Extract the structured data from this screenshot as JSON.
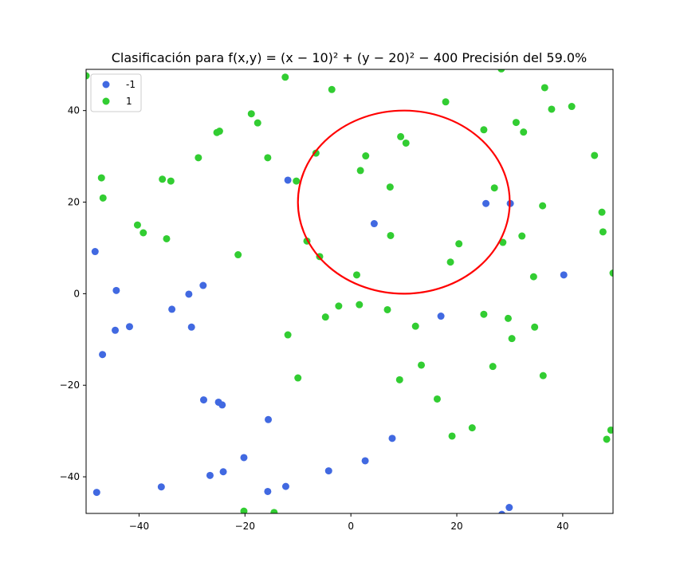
{
  "chart_data": {
    "type": "scatter",
    "title": "Clasificación para f(x,y) = (x − 10)² + (y − 20)² − 400 Precisión del 59.0%",
    "xlabel": "",
    "ylabel": "",
    "xlim": [
      -50,
      49.5
    ],
    "ylim": [
      -48,
      49
    ],
    "xticks": [
      -40,
      -20,
      0,
      20,
      40
    ],
    "yticks": [
      -40,
      -20,
      0,
      20,
      40
    ],
    "grid": false,
    "legend_position": "top-left",
    "circle": {
      "center": [
        10,
        20
      ],
      "radius": 20,
      "color": "#ff0000"
    },
    "series": [
      {
        "name": "-1",
        "color": "#4169e1",
        "points": [
          [
            -48.3,
            9.2
          ],
          [
            -44.3,
            0.7
          ],
          [
            -44.5,
            -8.0
          ],
          [
            -41.8,
            -7.2
          ],
          [
            -46.9,
            -13.3
          ],
          [
            -33.8,
            -3.4
          ],
          [
            -30.6,
            -0.1
          ],
          [
            -30.1,
            -7.3
          ],
          [
            -27.9,
            1.8
          ],
          [
            -11.9,
            24.8
          ],
          [
            4.4,
            15.3
          ],
          [
            25.5,
            19.7
          ],
          [
            30.1,
            19.7
          ],
          [
            40.2,
            4.1
          ],
          [
            17.0,
            -4.9
          ],
          [
            -27.8,
            -23.2
          ],
          [
            -25.0,
            -23.7
          ],
          [
            -24.3,
            -24.3
          ],
          [
            -15.6,
            -27.5
          ],
          [
            -20.2,
            -35.8
          ],
          [
            -26.6,
            -39.7
          ],
          [
            -24.1,
            -38.9
          ],
          [
            -35.8,
            -42.2
          ],
          [
            -48.0,
            -43.4
          ],
          [
            -15.7,
            -43.2
          ],
          [
            -12.3,
            -42.1
          ],
          [
            -4.2,
            -38.7
          ],
          [
            2.7,
            -36.5
          ],
          [
            7.8,
            -31.6
          ],
          [
            29.9,
            -46.7
          ],
          [
            28.5,
            -48.2
          ]
        ]
      },
      {
        "name": "1",
        "color": "#32cd32",
        "points": [
          [
            -50.0,
            47.6
          ],
          [
            -47.1,
            25.3
          ],
          [
            -46.8,
            20.9
          ],
          [
            -40.3,
            15.0
          ],
          [
            -39.2,
            13.3
          ],
          [
            -34.8,
            12.0
          ],
          [
            -35.6,
            25.0
          ],
          [
            -34.0,
            24.6
          ],
          [
            -28.8,
            29.7
          ],
          [
            -25.3,
            35.2
          ],
          [
            -24.8,
            35.5
          ],
          [
            -18.8,
            39.3
          ],
          [
            -17.6,
            37.3
          ],
          [
            -15.7,
            29.7
          ],
          [
            -12.4,
            47.3
          ],
          [
            -3.6,
            44.6
          ],
          [
            -21.3,
            8.5
          ],
          [
            -10.3,
            24.6
          ],
          [
            -6.6,
            30.7
          ],
          [
            -8.3,
            11.5
          ],
          [
            -5.9,
            8.1
          ],
          [
            2.8,
            30.1
          ],
          [
            1.8,
            26.9
          ],
          [
            9.4,
            34.3
          ],
          [
            10.4,
            32.9
          ],
          [
            7.4,
            23.3
          ],
          [
            7.5,
            12.7
          ],
          [
            1.1,
            4.1
          ],
          [
            17.9,
            41.9
          ],
          [
            25.1,
            35.8
          ],
          [
            27.1,
            23.1
          ],
          [
            20.4,
            10.9
          ],
          [
            18.8,
            6.9
          ],
          [
            28.7,
            11.2
          ],
          [
            31.2,
            37.4
          ],
          [
            32.6,
            35.3
          ],
          [
            32.3,
            12.6
          ],
          [
            34.5,
            3.7
          ],
          [
            36.2,
            19.2
          ],
          [
            36.6,
            45.0
          ],
          [
            37.9,
            40.3
          ],
          [
            41.7,
            40.9
          ],
          [
            46.0,
            30.2
          ],
          [
            47.4,
            17.8
          ],
          [
            47.6,
            13.5
          ],
          [
            49.5,
            4.5
          ],
          [
            28.4,
            49.1
          ],
          [
            -2.3,
            -2.7
          ],
          [
            1.6,
            -2.4
          ],
          [
            -4.8,
            -5.1
          ],
          [
            6.9,
            -3.5
          ],
          [
            12.2,
            -7.1
          ],
          [
            25.1,
            -4.5
          ],
          [
            29.7,
            -5.4
          ],
          [
            30.4,
            -9.8
          ],
          [
            34.7,
            -7.3
          ],
          [
            -11.9,
            -9.0
          ],
          [
            -10.0,
            -18.4
          ],
          [
            13.3,
            -15.6
          ],
          [
            9.2,
            -18.8
          ],
          [
            26.8,
            -15.9
          ],
          [
            36.3,
            -17.9
          ],
          [
            16.3,
            -23.0
          ],
          [
            19.1,
            -31.1
          ],
          [
            22.9,
            -29.3
          ],
          [
            48.3,
            -31.8
          ],
          [
            49.1,
            -29.8
          ],
          [
            -20.2,
            -47.5
          ],
          [
            -14.5,
            -47.8
          ]
        ]
      }
    ]
  }
}
